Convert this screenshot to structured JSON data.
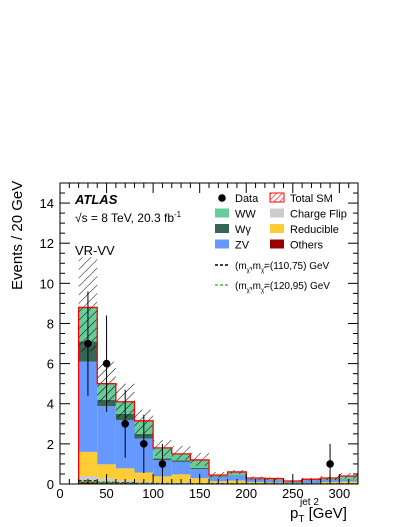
{
  "chart_data": {
    "type": "bar",
    "stacked": true,
    "experiment": "ATLAS",
    "energy_label": "√s = 8 TeV, 20.3 fb",
    "lumi_exponent": "-1",
    "region_label": "VR-VV",
    "ylabel": "Events / 20 GeV",
    "xlabel_main": "p",
    "xlabel_sub": "T",
    "xlabel_sup": "jet 2",
    "xlabel_unit": " [GeV]",
    "xlim": [
      0,
      320
    ],
    "ylim": [
      0,
      15
    ],
    "xticks": [
      "0",
      "50",
      "100",
      "150",
      "200",
      "250",
      "300"
    ],
    "yticks": [
      "0",
      "2",
      "4",
      "6",
      "8",
      "10",
      "12",
      "14"
    ],
    "bin_edges": [
      20,
      40,
      60,
      80,
      100,
      120,
      140,
      160,
      180,
      200,
      220,
      240,
      260,
      280,
      300,
      320
    ],
    "colors": {
      "Charge Flip": "#cccccc",
      "Reducible": "#ffcc33",
      "Others": "#990000",
      "ZV": "#6699ff",
      "Wγ": "#336655",
      "WW": "#66cc99",
      "Total SM": "#ff0000",
      "signal1": "#000000",
      "signal2": "#33cc33"
    },
    "series": [
      {
        "name": "Others",
        "values": [
          0.1,
          0.08,
          0.06,
          0.04,
          0.03,
          0.03,
          0.02,
          0.02,
          0.01,
          0.01,
          0.01,
          0.01,
          0.0,
          0.01,
          0.01
        ]
      },
      {
        "name": "Charge Flip",
        "values": [
          0.3,
          0.2,
          0.12,
          0.08,
          0.05,
          0.05,
          0.02,
          0.02,
          0.01,
          0.01,
          0.01,
          0.01,
          0.0,
          0.01,
          0.01
        ]
      },
      {
        "name": "Reducible",
        "values": [
          1.2,
          0.7,
          0.6,
          0.45,
          0.3,
          0.4,
          0.25,
          0.1,
          0.15,
          0.08,
          0.05,
          0.03,
          0.05,
          0.08,
          0.1
        ]
      },
      {
        "name": "ZV",
        "values": [
          4.5,
          2.9,
          2.4,
          1.7,
          0.8,
          0.62,
          0.45,
          0.2,
          0.25,
          0.13,
          0.1,
          0.05,
          0.12,
          0.1,
          0.1
        ]
      },
      {
        "name": "Wγ",
        "values": [
          1.0,
          0.32,
          0.32,
          0.23,
          0.1,
          0.08,
          0.06,
          0.04,
          0.02,
          0.02,
          0.02,
          0.01,
          0.02,
          0.02,
          0.02
        ]
      },
      {
        "name": "WW",
        "values": [
          1.7,
          0.8,
          0.6,
          0.65,
          0.52,
          0.32,
          0.4,
          0.07,
          0.16,
          0.05,
          0.08,
          0.04,
          0.05,
          0.08,
          0.16
        ]
      }
    ],
    "total_sm": [
      8.8,
      5.0,
      4.1,
      3.15,
      1.8,
      1.5,
      1.2,
      0.45,
      0.6,
      0.3,
      0.27,
      0.15,
      0.24,
      0.3,
      0.4
    ],
    "uncertainty_band": {
      "up": [
        11.3,
        6.1,
        5.0,
        3.7,
        2.2,
        1.9,
        1.55,
        0.6,
        0.7,
        0.37,
        0.33,
        0.2,
        0.3,
        0.4,
        0.55
      ],
      "down": [
        6.6,
        4.1,
        3.3,
        2.5,
        1.4,
        1.2,
        0.9,
        0.32,
        0.5,
        0.22,
        0.2,
        0.1,
        0.18,
        0.2,
        0.28
      ]
    },
    "data_points": [
      {
        "x": 30,
        "y": 7,
        "err_up": 2.6,
        "err_down": 2.6
      },
      {
        "x": 50,
        "y": 6,
        "err_up": 2.4,
        "err_down": 2.4
      },
      {
        "x": 70,
        "y": 3,
        "err_up": 1.7,
        "err_down": 1.7
      },
      {
        "x": 90,
        "y": 2,
        "err_up": 1.45,
        "err_down": 1.45
      },
      {
        "x": 110,
        "y": 1,
        "err_up": 1.0,
        "err_down": 1.0
      },
      {
        "x": 290,
        "y": 1,
        "err_up": 1.0,
        "err_down": 1.0
      }
    ],
    "signals": [
      {
        "name": "(110,75)",
        "color": "#000000",
        "values": [
          0.15,
          0.08,
          0.05,
          0.03,
          0.02,
          0.01,
          0.01,
          0.01,
          0,
          0,
          0,
          0,
          0,
          0,
          0
        ]
      },
      {
        "name": "(120,95)",
        "color": "#33cc33",
        "values": [
          0.1,
          0.05,
          0.03,
          0.02,
          0.01,
          0.01,
          0,
          0,
          0,
          0,
          0,
          0,
          0,
          0,
          0
        ]
      }
    ],
    "legend": {
      "position": "top-right",
      "entries": [
        {
          "label": "Data",
          "kind": "data"
        },
        {
          "label": "Total SM",
          "kind": "hatch"
        },
        {
          "label": "WW",
          "kind": "fill",
          "series": "WW"
        },
        {
          "label": "Charge Flip",
          "kind": "fill",
          "series": "Charge Flip"
        },
        {
          "label": "Wγ",
          "kind": "fill",
          "series": "Wγ"
        },
        {
          "label": "Reducible",
          "kind": "fill",
          "series": "Reducible"
        },
        {
          "label": "ZV",
          "kind": "fill",
          "series": "ZV"
        },
        {
          "label": "Others",
          "kind": "fill",
          "series": "Others"
        }
      ],
      "signal_text_prefix": "(m",
      "signal_text_sub1": "χ̃",
      "signal_text_mid": ",m",
      "signal_text_sub2": "χ̃",
      "signal_values": [
        "=(110,75) GeV",
        "=(120,95) GeV"
      ]
    }
  }
}
